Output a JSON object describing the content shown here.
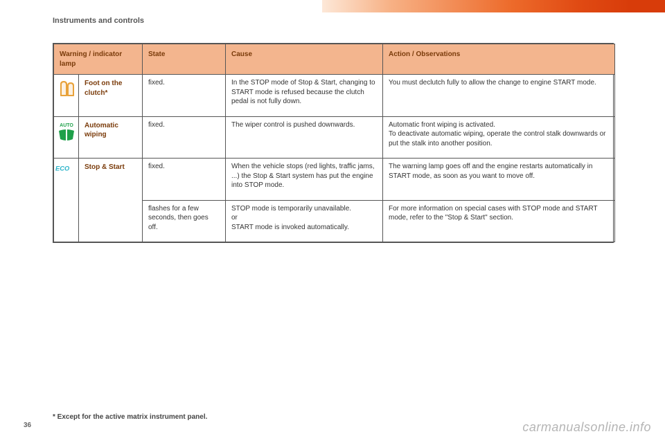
{
  "page": {
    "section_title": "Instruments and controls",
    "page_number": "36",
    "footnote": "* Except for the active matrix instrument panel.",
    "watermark": "carmanualsonline.info"
  },
  "table": {
    "headers": {
      "col1": "Warning / indicator lamp",
      "col2": "State",
      "col3": "Cause",
      "col4": "Action / Observations"
    },
    "header_bg": "#f3b58e",
    "header_color": "#7a3b0a",
    "border_color": "#555555",
    "rows": [
      {
        "icon": "foot-clutch",
        "name": "Foot on the clutch*",
        "state": "fixed.",
        "cause": "In the STOP mode of Stop & Start, changing to START mode is refused because the clutch pedal is not fully down.",
        "action": "You must declutch fully to allow the change to engine START mode."
      },
      {
        "icon": "auto-wiping",
        "name": "Automatic wiping",
        "state": "fixed.",
        "cause": "The wiper control is pushed downwards.",
        "action": "Automatic front wiping is activated.\nTo deactivate automatic wiping, operate the control stalk downwards or put the stalk into another position."
      },
      {
        "icon": "eco",
        "name": "Stop & Start",
        "state": "fixed.",
        "cause": "When the vehicle stops (red lights, traffic jams, ...) the Stop & Start system has put the engine into STOP mode.",
        "action": "The warning lamp goes off and the engine restarts automatically in START mode, as soon as you want to move off."
      },
      {
        "state": "flashes for a few seconds, then goes off.",
        "cause": "STOP mode is temporarily unavailable.\nor\nSTART mode is invoked automatically.",
        "action": "For more information on special cases with STOP mode and START mode, refer to the \"Stop & Start\" section."
      }
    ]
  },
  "colors": {
    "icon_orange": "#e8a23a",
    "icon_green": "#1fa04a",
    "icon_cyan": "#2bb3c9",
    "text_body": "#333333"
  }
}
